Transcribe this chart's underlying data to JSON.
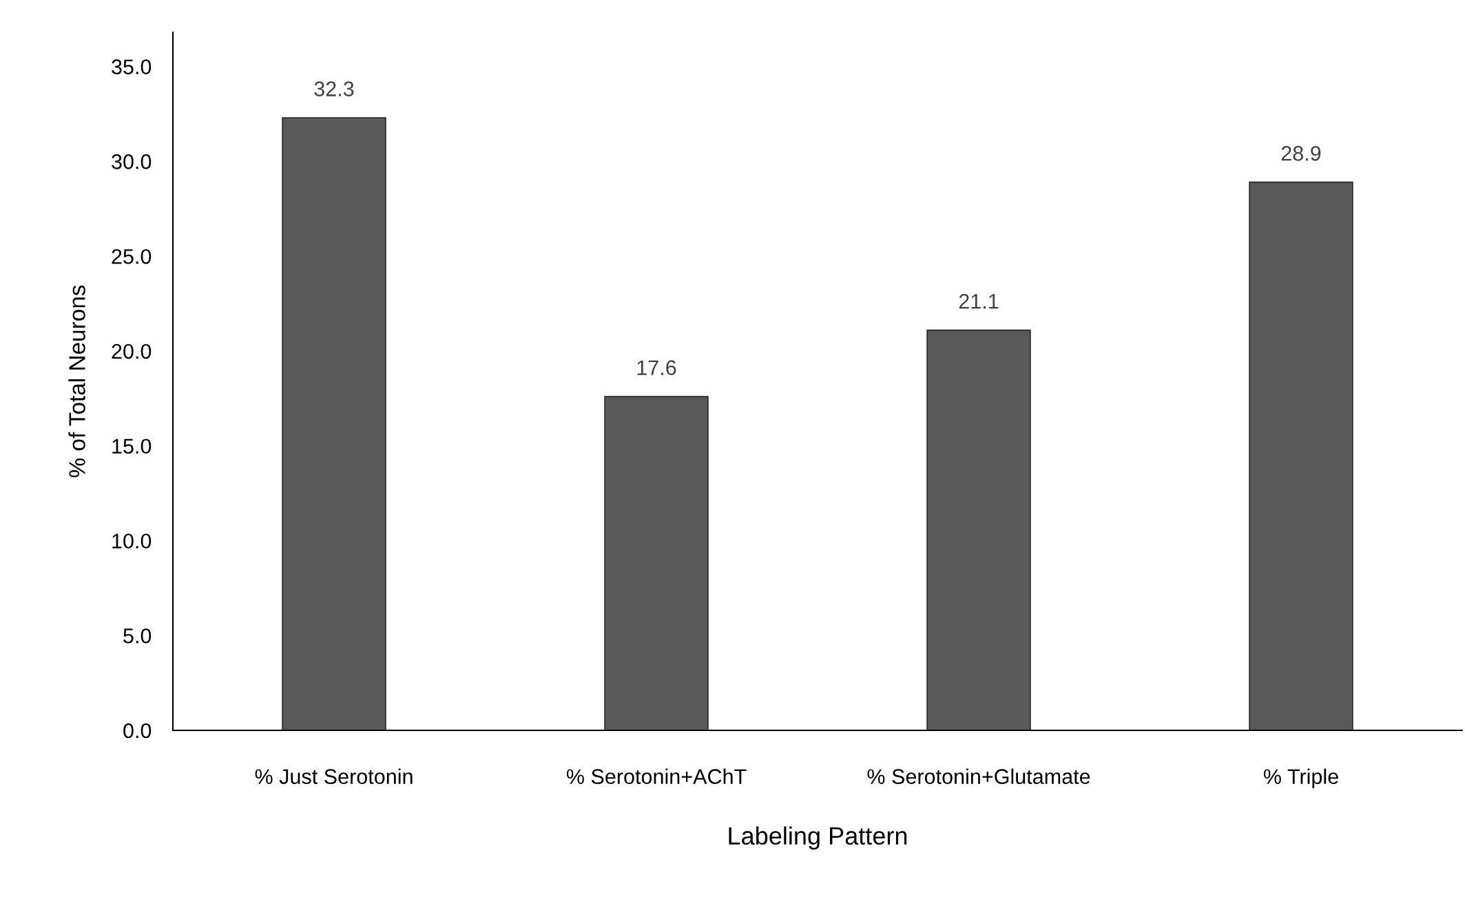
{
  "chart_data": {
    "type": "bar",
    "xlabel": "Labeling Pattern",
    "ylabel": "% of Total Neurons",
    "categories": [
      "% Just Serotonin",
      "% Serotonin+AChT",
      "% Serotonin+Glutamate",
      "% Triple"
    ],
    "values": [
      32.3,
      17.6,
      21.1,
      28.9
    ],
    "color": "#595959",
    "ylim": [
      0,
      36.8
    ],
    "yticks": [
      {
        "value": 0,
        "label": "0.0"
      },
      {
        "value": 5,
        "label": "5.0"
      },
      {
        "value": 10,
        "label": "10.0"
      },
      {
        "value": 15,
        "label": "15.0"
      },
      {
        "value": 20,
        "label": "20.0"
      },
      {
        "value": 25,
        "label": "25.0"
      },
      {
        "value": 30,
        "label": "30.0"
      },
      {
        "value": 35,
        "label": "35.0"
      }
    ],
    "data_labels": true,
    "grid": false,
    "legend": false
  }
}
